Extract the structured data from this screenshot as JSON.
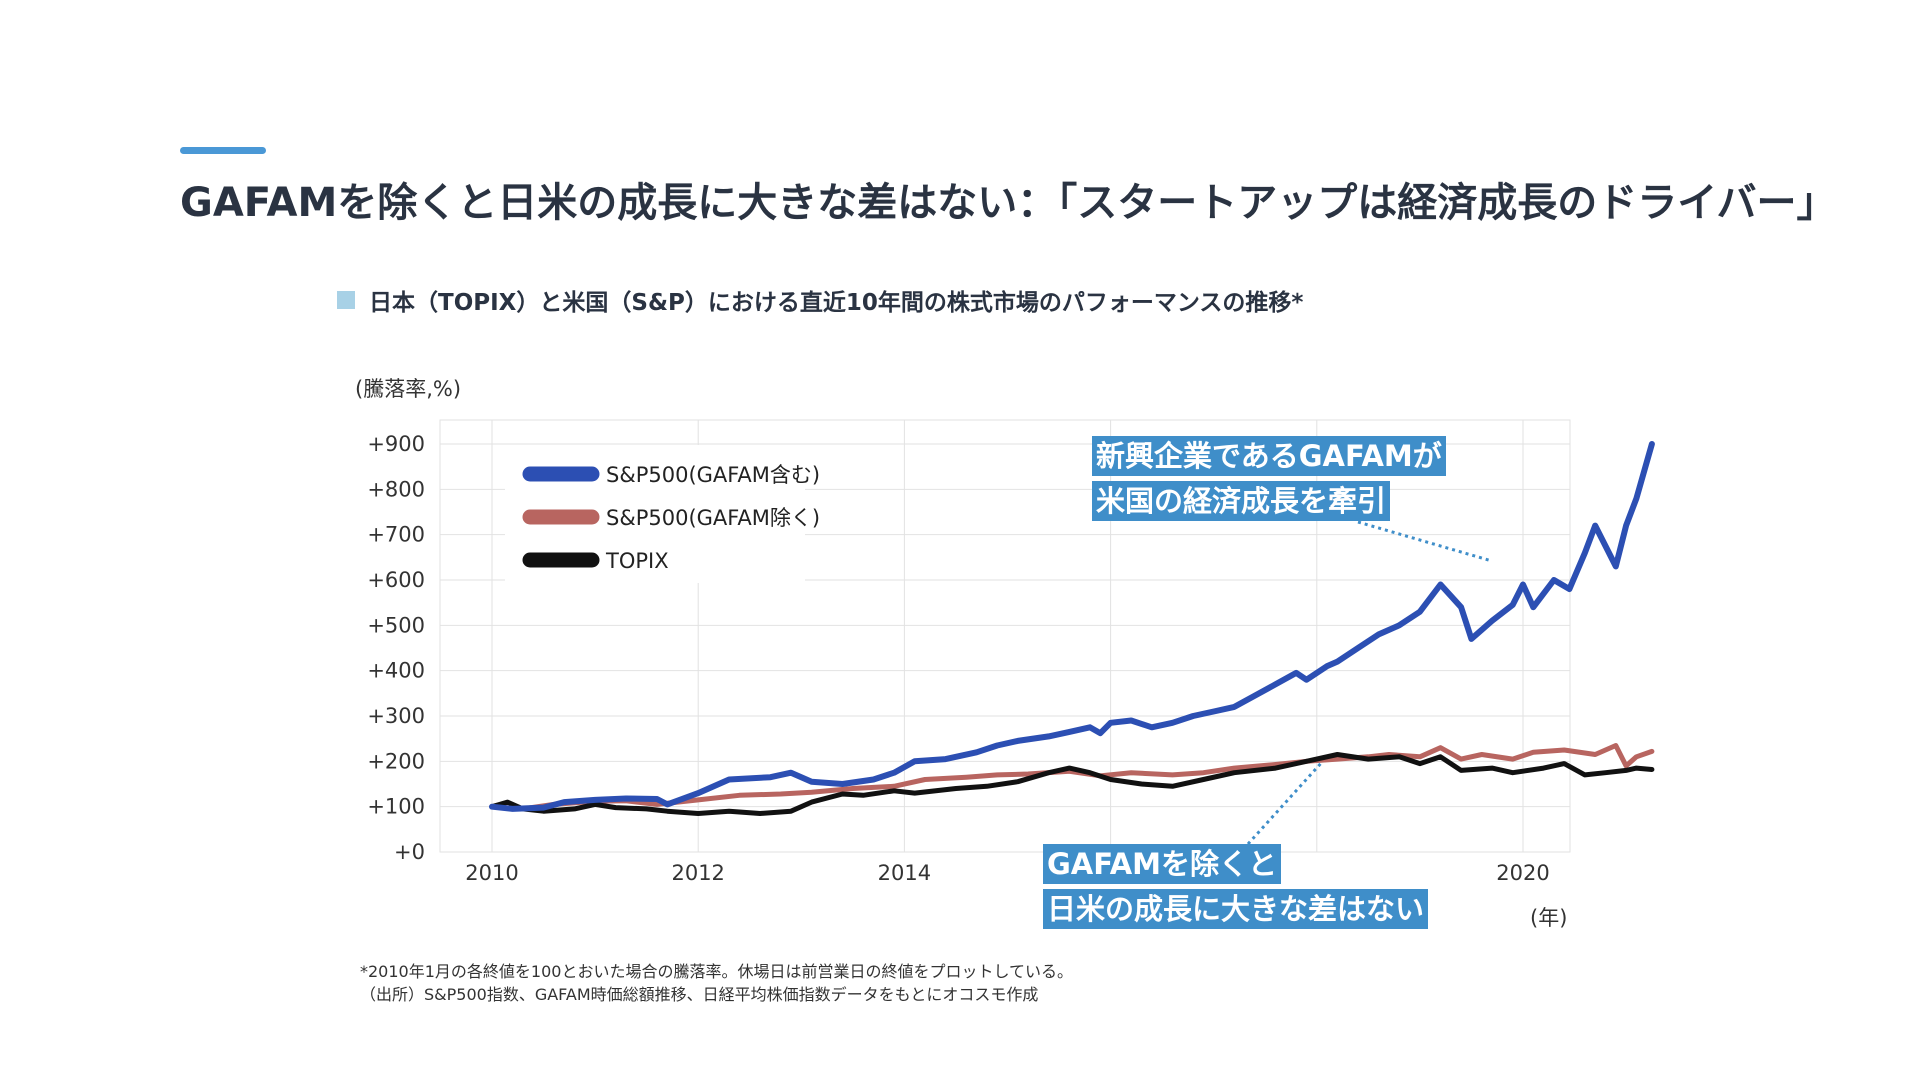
{
  "slide": {
    "title": "GAFAMを除くと日米の成長に大きな差はない：「スタートアップは経済成長のドライバー」",
    "subtitle": "日本（TOPIX）と米国（S&P）における直近10年間の株式市場のパフォーマンスの推移*",
    "footnote_1": "*2010年1月の各終値を100とおいた場合の騰落率。休場日は前営業日の終値をプロットしている。",
    "footnote_2": "（出所）S&P500指数、GAFAM時価総額推移、日経平均株価指数データをもとにオコスモ作成"
  },
  "callouts": {
    "top_line1": "新興企業であるGAFAMが",
    "top_line2": "米国の経済成長を牽引",
    "bottom_line1": "GAFAMを除くと",
    "bottom_line2": "日米の成長に大きな差はない"
  },
  "colors": {
    "accent": "#4a98d6",
    "callout_bg": "#3f8ec9",
    "sp500_incl": "#2c4fb3",
    "sp500_excl": "#b86560",
    "topix": "#111111",
    "grid": "#e2e2e2"
  },
  "chart_data": {
    "type": "line",
    "y_unit_label": "(騰落率,%)",
    "x_unit_label": "(年)",
    "xlim": [
      2010,
      2020.4
    ],
    "ylim": [
      0,
      900
    ],
    "x_ticks": [
      2010,
      2012,
      2014,
      2016,
      2018,
      2020
    ],
    "x_tick_labels": [
      "2010",
      "2012",
      "2014",
      "",
      "",
      "2020"
    ],
    "y_ticks": [
      0,
      100,
      200,
      300,
      400,
      500,
      600,
      700,
      800,
      900
    ],
    "y_tick_labels": [
      "+0",
      "+100",
      "+200",
      "+300",
      "+400",
      "+500",
      "+600",
      "+700",
      "+800",
      "+900"
    ],
    "grid": true,
    "legend_position": "top-left",
    "series": [
      {
        "name": "S&P500(GAFAM含む)",
        "color": "#2c4fb3",
        "points": [
          [
            2010.0,
            100
          ],
          [
            2010.2,
            95
          ],
          [
            2010.5,
            98
          ],
          [
            2010.7,
            110
          ],
          [
            2011.0,
            115
          ],
          [
            2011.3,
            118
          ],
          [
            2011.6,
            117
          ],
          [
            2011.7,
            105
          ],
          [
            2012.0,
            130
          ],
          [
            2012.3,
            160
          ],
          [
            2012.7,
            165
          ],
          [
            2012.9,
            175
          ],
          [
            2013.1,
            155
          ],
          [
            2013.4,
            150
          ],
          [
            2013.7,
            160
          ],
          [
            2013.9,
            175
          ],
          [
            2014.1,
            200
          ],
          [
            2014.4,
            205
          ],
          [
            2014.7,
            220
          ],
          [
            2014.9,
            235
          ],
          [
            2015.1,
            245
          ],
          [
            2015.4,
            255
          ],
          [
            2015.6,
            265
          ],
          [
            2015.8,
            275
          ],
          [
            2015.9,
            262
          ],
          [
            2016.0,
            285
          ],
          [
            2016.2,
            290
          ],
          [
            2016.4,
            275
          ],
          [
            2016.6,
            285
          ],
          [
            2016.8,
            300
          ],
          [
            2017.0,
            310
          ],
          [
            2017.2,
            320
          ],
          [
            2017.4,
            345
          ],
          [
            2017.6,
            370
          ],
          [
            2017.8,
            395
          ],
          [
            2017.9,
            380
          ],
          [
            2018.1,
            410
          ],
          [
            2018.2,
            420
          ],
          [
            2018.4,
            450
          ],
          [
            2018.6,
            480
          ],
          [
            2018.8,
            500
          ],
          [
            2019.0,
            530
          ],
          [
            2019.2,
            590
          ],
          [
            2019.4,
            540
          ],
          [
            2019.5,
            470
          ],
          [
            2019.7,
            510
          ],
          [
            2019.9,
            545
          ],
          [
            2020.0,
            590
          ],
          [
            2020.1,
            540
          ],
          [
            2020.3,
            600
          ],
          [
            2020.45,
            580
          ],
          [
            2020.6,
            660
          ],
          [
            2020.7,
            720
          ],
          [
            2020.9,
            630
          ],
          [
            2021.0,
            720
          ],
          [
            2021.1,
            780
          ],
          [
            2021.25,
            900
          ]
        ]
      },
      {
        "name": "S&P500(GAFAM除く)",
        "color": "#b86560",
        "points": [
          [
            2010.0,
            100
          ],
          [
            2010.3,
            95
          ],
          [
            2010.6,
            105
          ],
          [
            2011.0,
            112
          ],
          [
            2011.3,
            113
          ],
          [
            2011.6,
            105
          ],
          [
            2012.0,
            115
          ],
          [
            2012.4,
            125
          ],
          [
            2012.8,
            128
          ],
          [
            2013.1,
            132
          ],
          [
            2013.5,
            140
          ],
          [
            2013.9,
            145
          ],
          [
            2014.2,
            160
          ],
          [
            2014.6,
            165
          ],
          [
            2014.9,
            170
          ],
          [
            2015.2,
            172
          ],
          [
            2015.6,
            178
          ],
          [
            2015.9,
            168
          ],
          [
            2016.2,
            175
          ],
          [
            2016.6,
            170
          ],
          [
            2016.9,
            175
          ],
          [
            2017.2,
            185
          ],
          [
            2017.6,
            193
          ],
          [
            2017.9,
            200
          ],
          [
            2018.2,
            205
          ],
          [
            2018.5,
            210
          ],
          [
            2018.7,
            215
          ],
          [
            2019.0,
            210
          ],
          [
            2019.2,
            230
          ],
          [
            2019.4,
            205
          ],
          [
            2019.6,
            215
          ],
          [
            2019.9,
            205
          ],
          [
            2020.1,
            220
          ],
          [
            2020.4,
            225
          ],
          [
            2020.7,
            215
          ],
          [
            2020.9,
            235
          ],
          [
            2021.0,
            190
          ],
          [
            2021.1,
            210
          ],
          [
            2021.25,
            222
          ]
        ]
      },
      {
        "name": "TOPIX",
        "color": "#111111",
        "points": [
          [
            2010.0,
            100
          ],
          [
            2010.15,
            110
          ],
          [
            2010.3,
            95
          ],
          [
            2010.5,
            90
          ],
          [
            2010.8,
            95
          ],
          [
            2011.0,
            105
          ],
          [
            2011.2,
            98
          ],
          [
            2011.5,
            95
          ],
          [
            2011.7,
            90
          ],
          [
            2012.0,
            85
          ],
          [
            2012.3,
            90
          ],
          [
            2012.6,
            85
          ],
          [
            2012.9,
            90
          ],
          [
            2013.1,
            110
          ],
          [
            2013.4,
            128
          ],
          [
            2013.6,
            125
          ],
          [
            2013.9,
            135
          ],
          [
            2014.1,
            130
          ],
          [
            2014.5,
            140
          ],
          [
            2014.8,
            145
          ],
          [
            2015.1,
            155
          ],
          [
            2015.4,
            175
          ],
          [
            2015.6,
            185
          ],
          [
            2015.8,
            175
          ],
          [
            2016.0,
            160
          ],
          [
            2016.3,
            150
          ],
          [
            2016.6,
            145
          ],
          [
            2016.9,
            160
          ],
          [
            2017.2,
            175
          ],
          [
            2017.6,
            185
          ],
          [
            2017.9,
            200
          ],
          [
            2018.2,
            215
          ],
          [
            2018.5,
            205
          ],
          [
            2018.8,
            210
          ],
          [
            2019.0,
            195
          ],
          [
            2019.2,
            210
          ],
          [
            2019.4,
            180
          ],
          [
            2019.7,
            185
          ],
          [
            2019.9,
            175
          ],
          [
            2020.2,
            185
          ],
          [
            2020.4,
            195
          ],
          [
            2020.6,
            170
          ],
          [
            2020.8,
            175
          ],
          [
            2021.0,
            180
          ],
          [
            2021.1,
            185
          ],
          [
            2021.25,
            182
          ]
        ]
      }
    ]
  }
}
